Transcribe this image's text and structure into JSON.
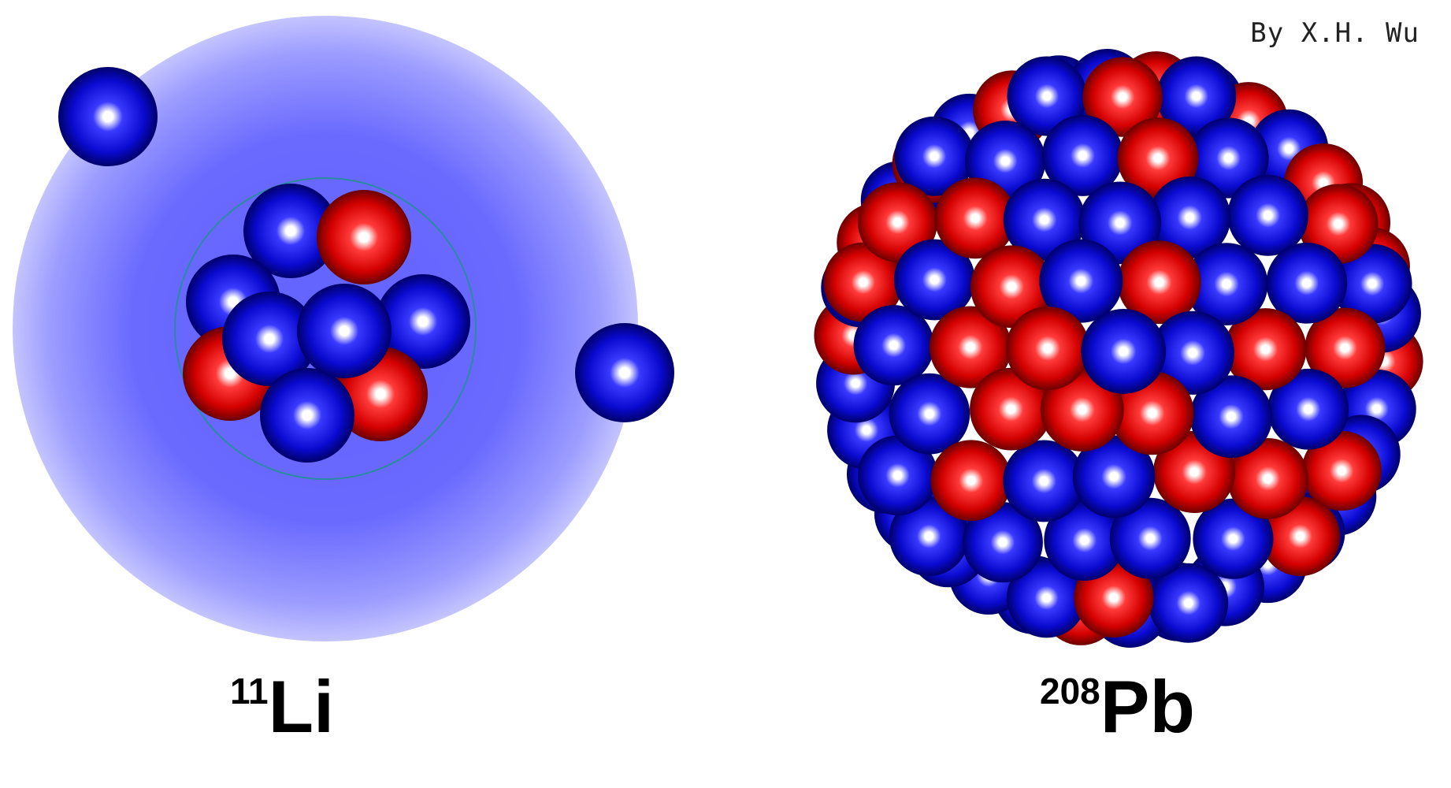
{
  "credit": "By X.H. Wu",
  "nuclei": [
    {
      "mass_number": "11",
      "symbol": "Li",
      "type": "halo nucleus"
    },
    {
      "mass_number": "208",
      "symbol": "Pb",
      "type": "heavy nucleus"
    }
  ],
  "colors": {
    "proton": "#d40000",
    "neutron": "#0a0ad0",
    "halo": "#6e6eff",
    "core_ring": "#2a8aa0"
  }
}
